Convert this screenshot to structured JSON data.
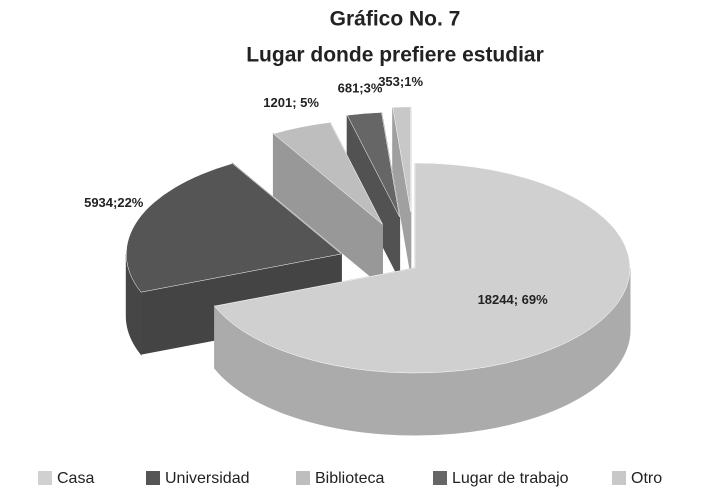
{
  "chart_data": {
    "type": "pie",
    "title": [
      "Gráfico No. 7",
      "Lugar donde prefiere estudiar"
    ],
    "categories": [
      "Casa",
      "Universidad",
      "Biblioteca",
      "Lugar de trabajo",
      "Otro"
    ],
    "values": [
      18244,
      5934,
      1201,
      681,
      353
    ],
    "value_labels": [
      "18244; 69%",
      "5934;22%",
      "1201; 5%",
      "681;3%",
      "353;1%"
    ],
    "colors": [
      "#d0d0d0",
      "#555555",
      "#bebebe",
      "#666666",
      "#c8c8c8"
    ],
    "legend": "bottom"
  }
}
